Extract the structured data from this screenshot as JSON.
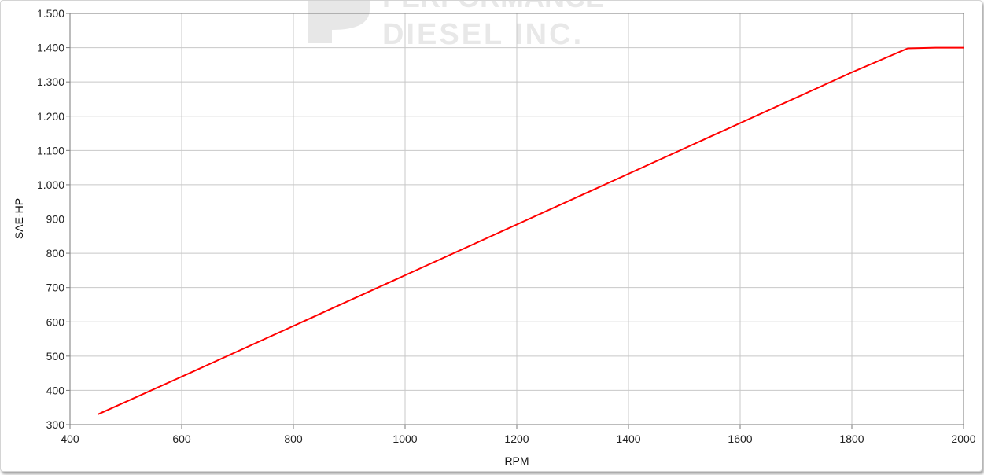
{
  "watermark": {
    "line1": "PERFORMANCE",
    "line2": "DIESEL INC."
  },
  "chart_data": {
    "type": "line",
    "title": "",
    "xlabel": "RPM",
    "ylabel": "SAE-HP",
    "xlim": [
      400,
      2000
    ],
    "ylim": [
      300,
      1500
    ],
    "x_ticks": [
      400,
      600,
      800,
      1000,
      1200,
      1400,
      1600,
      1800,
      2000
    ],
    "x_tick_labels": [
      "400",
      "600",
      "800",
      "1000",
      "1200",
      "1400",
      "1600",
      "1800",
      "2000"
    ],
    "y_ticks": [
      300,
      400,
      500,
      600,
      700,
      800,
      900,
      1000,
      1100,
      1200,
      1300,
      1400,
      1500
    ],
    "y_tick_labels": [
      "300",
      "400",
      "500",
      "600",
      "700",
      "800",
      "900",
      "1.000",
      "1.100",
      "1.200",
      "1.300",
      "1.400",
      "1.500"
    ],
    "grid": true,
    "legend": "none",
    "series": [
      {
        "color": "#ff0000",
        "x": [
          450,
          600,
          800,
          1000,
          1200,
          1400,
          1600,
          1800,
          1900,
          1950,
          2000
        ],
        "y": [
          330,
          440,
          588,
          736,
          884,
          1032,
          1180,
          1328,
          1398,
          1400,
          1400
        ]
      }
    ]
  }
}
